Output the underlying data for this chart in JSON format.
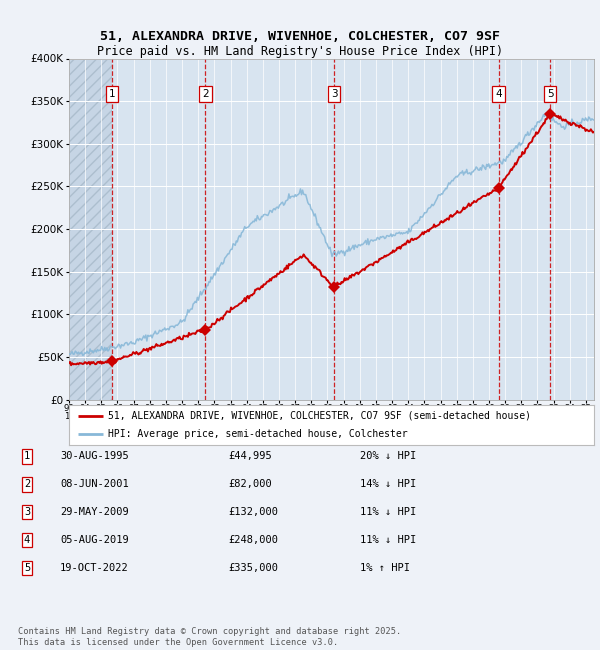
{
  "title_line1": "51, ALEXANDRA DRIVE, WIVENHOE, COLCHESTER, CO7 9SF",
  "title_line2": "Price paid vs. HM Land Registry's House Price Index (HPI)",
  "background_color": "#eef2f8",
  "plot_bg_color": "#d8e4f0",
  "grid_color": "#ffffff",
  "red_line_color": "#cc0000",
  "blue_line_color": "#88b8d8",
  "sale_points": [
    {
      "year": 1995.67,
      "price": 44995,
      "label": "1"
    },
    {
      "year": 2001.44,
      "price": 82000,
      "label": "2"
    },
    {
      "year": 2009.41,
      "price": 132000,
      "label": "3"
    },
    {
      "year": 2019.59,
      "price": 248000,
      "label": "4"
    },
    {
      "year": 2022.79,
      "price": 335000,
      "label": "5"
    }
  ],
  "table_rows": [
    {
      "num": "1",
      "date": "30-AUG-1995",
      "price": "£44,995",
      "hpi": "20% ↓ HPI"
    },
    {
      "num": "2",
      "date": "08-JUN-2001",
      "price": "£82,000",
      "hpi": "14% ↓ HPI"
    },
    {
      "num": "3",
      "date": "29-MAY-2009",
      "price": "£132,000",
      "hpi": "11% ↓ HPI"
    },
    {
      "num": "4",
      "date": "05-AUG-2019",
      "price": "£248,000",
      "hpi": "11% ↓ HPI"
    },
    {
      "num": "5",
      "date": "19-OCT-2022",
      "price": "£335,000",
      "hpi": "1% ↑ HPI"
    }
  ],
  "legend_line1": "51, ALEXANDRA DRIVE, WIVENHOE, COLCHESTER, CO7 9SF (semi-detached house)",
  "legend_line2": "HPI: Average price, semi-detached house, Colchester",
  "footer": "Contains HM Land Registry data © Crown copyright and database right 2025.\nThis data is licensed under the Open Government Licence v3.0.",
  "ylim": [
    0,
    400000
  ],
  "xlim_start": 1993.0,
  "xlim_end": 2025.5,
  "yticks": [
    0,
    50000,
    100000,
    150000,
    200000,
    250000,
    300000,
    350000,
    400000
  ],
  "ytick_labels": [
    "£0",
    "£50K",
    "£100K",
    "£150K",
    "£200K",
    "£250K",
    "£300K",
    "£350K",
    "£400K"
  ]
}
